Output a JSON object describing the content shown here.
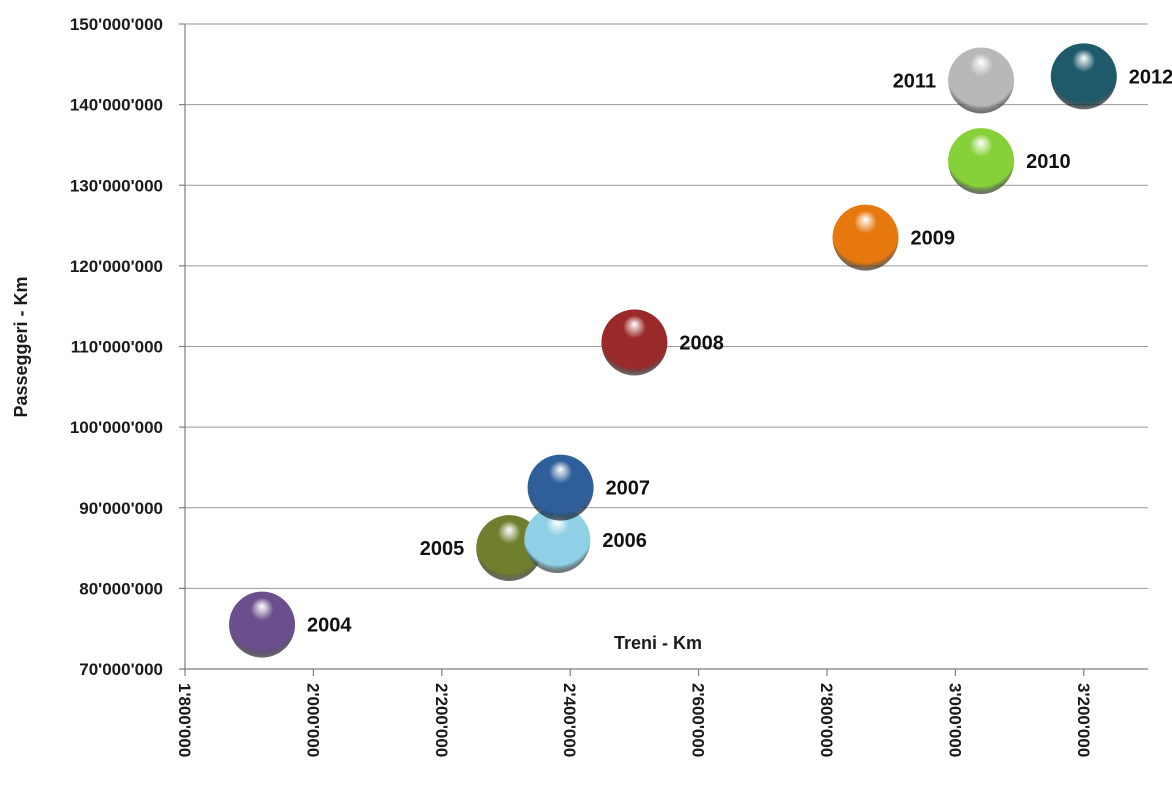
{
  "chart_data": {
    "type": "scatter",
    "title": "",
    "xlabel": "Treni - Km",
    "ylabel": "Passeggeri - Km",
    "xlim": [
      1800000,
      3300000
    ],
    "ylim": [
      70000000,
      150000000
    ],
    "grid": "horizontal",
    "x_tick_labels": [
      "1'800'000",
      "2'000'000",
      "2'200'000",
      "2'400'000",
      "2'600'000",
      "2'800'000",
      "3'000'000",
      "3'200'000"
    ],
    "x_tick_values": [
      1800000,
      2000000,
      2200000,
      2400000,
      2600000,
      2800000,
      3000000,
      3200000
    ],
    "y_tick_labels": [
      "70'000'000",
      "80'000'000",
      "90'000'000",
      "100'000'000",
      "110'000'000",
      "120'000'000",
      "130'000'000",
      "140'000'000",
      "150'000'000"
    ],
    "y_tick_values": [
      70000000,
      80000000,
      90000000,
      100000000,
      110000000,
      120000000,
      130000000,
      140000000,
      150000000
    ],
    "points": [
      {
        "label": "2004",
        "x": 1920000,
        "y": 75500000,
        "color": "#6a4f8c",
        "label_side": "right"
      },
      {
        "label": "2005",
        "x": 2305000,
        "y": 85000000,
        "color": "#6f7f2e",
        "label_side": "left"
      },
      {
        "label": "2006",
        "x": 2380000,
        "y": 86000000,
        "color": "#8fd0e6",
        "label_side": "right"
      },
      {
        "label": "2007",
        "x": 2385000,
        "y": 92500000,
        "color": "#2f5f9a",
        "label_side": "right"
      },
      {
        "label": "2008",
        "x": 2500000,
        "y": 110500000,
        "color": "#9a2a2a",
        "label_side": "right"
      },
      {
        "label": "2009",
        "x": 2860000,
        "y": 123500000,
        "color": "#e6780e",
        "label_side": "right"
      },
      {
        "label": "2010",
        "x": 3040000,
        "y": 133000000,
        "color": "#86d13a",
        "label_side": "right"
      },
      {
        "label": "2011",
        "x": 3040000,
        "y": 143000000,
        "color": "#b8b8b8",
        "label_side": "left"
      },
      {
        "label": "2012",
        "x": 3200000,
        "y": 143500000,
        "color": "#1f5a6a",
        "label_side": "right"
      }
    ]
  }
}
